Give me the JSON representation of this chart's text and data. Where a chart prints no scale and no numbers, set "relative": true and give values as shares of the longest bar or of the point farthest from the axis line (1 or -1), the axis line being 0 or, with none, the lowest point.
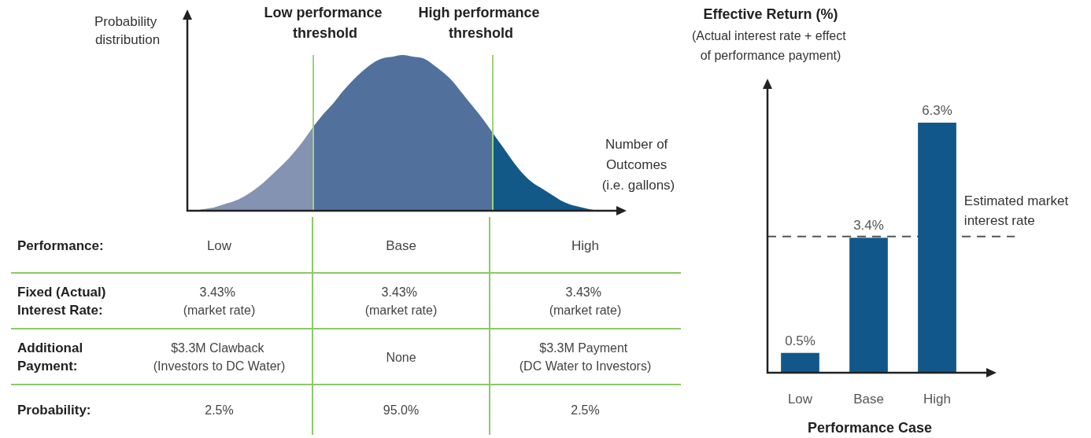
{
  "chart_data": [
    {
      "type": "area",
      "relative": true,
      "ylabel": "Probability\ndistribution",
      "xlabel": "Number of\nOutcomes\n(i.e. gallons)",
      "tick_labels": false,
      "categories": [
        null,
        null,
        null,
        null,
        null,
        null,
        null,
        null,
        null,
        null,
        null,
        null,
        null,
        null,
        null,
        null,
        null,
        null,
        null,
        null,
        null,
        null,
        null,
        null,
        null,
        null,
        null,
        null,
        null,
        null,
        null,
        null,
        null,
        null,
        null,
        null,
        null,
        null,
        null,
        null,
        null,
        null
      ],
      "series": [
        {
          "color": "#8593b3",
          "values": [
            0,
            0.01,
            0.02,
            0.04,
            0.06,
            0.09,
            0.13,
            0.18,
            0.24,
            0.3,
            0.37,
            0.45,
            0.54,
            null,
            null,
            null,
            null,
            null,
            null,
            null,
            null,
            null,
            null,
            null,
            null,
            null,
            null,
            null,
            null,
            null,
            null,
            null,
            null,
            null,
            null,
            null,
            null,
            null,
            null,
            null,
            null,
            null
          ]
        },
        {
          "color": "#51719c",
          "values": [
            null,
            null,
            null,
            null,
            null,
            null,
            null,
            null,
            null,
            null,
            null,
            null,
            0.54,
            0.62,
            0.69,
            0.77,
            0.84,
            0.9,
            0.95,
            0.98,
            0.99,
            1,
            0.99,
            0.98,
            0.94,
            0.89,
            0.83,
            0.75,
            0.67,
            0.59,
            0.5,
            null,
            null,
            null,
            null,
            null,
            null,
            null,
            null,
            null,
            null,
            null
          ]
        },
        {
          "color": "#135987",
          "values": [
            null,
            null,
            null,
            null,
            null,
            null,
            null,
            null,
            null,
            null,
            null,
            null,
            null,
            null,
            null,
            null,
            null,
            null,
            null,
            null,
            null,
            null,
            null,
            null,
            null,
            null,
            null,
            null,
            null,
            null,
            0.5,
            0.41,
            0.32,
            0.24,
            0.18,
            0.14,
            0.1,
            0.06,
            0.035,
            0.02,
            0.006,
            0
          ]
        }
      ],
      "annotations": [
        "Low performance\nthreshold",
        "High performance\nthreshold"
      ]
    },
    {
      "type": "other",
      "categories": [
        "Low",
        "Base",
        "High"
      ],
      "y_categories": [
        "Performance:",
        "Fixed (Actual)\nInterest Rate:",
        "Additional\nPayment:",
        "Probability:"
      ],
      "cell_labels": [
        [
          "3.43%\n(market rate)",
          "3.43%\n(market rate)",
          "3.43%\n(market rate)"
        ],
        [
          "$3.3M Clawback\n(Investors to DC Water)",
          "None",
          "$3.3M Payment\n(DC Water to Investors)"
        ],
        [
          "2.5%",
          "95.0%",
          "2.5%"
        ]
      ]
    },
    {
      "type": "bar",
      "title": "Effective Return (%)",
      "subtitle": "(Actual interest rate + effect\nof performance payment)",
      "xlabel": "Performance Case",
      "tick_labels": "x",
      "categories": [
        "Low",
        "Base",
        "High"
      ],
      "values": [
        0.5,
        3.4,
        6.3
      ],
      "color": "#12578a",
      "value_labels": [
        "0.5%",
        "3.4%",
        "6.3%"
      ],
      "ref_lines": [
        {
          "axis": "y",
          "value": 3.43,
          "label": "Estimated market\ninterest rate",
          "color": "#555555",
          "line_style": "dashed"
        }
      ]
    }
  ]
}
